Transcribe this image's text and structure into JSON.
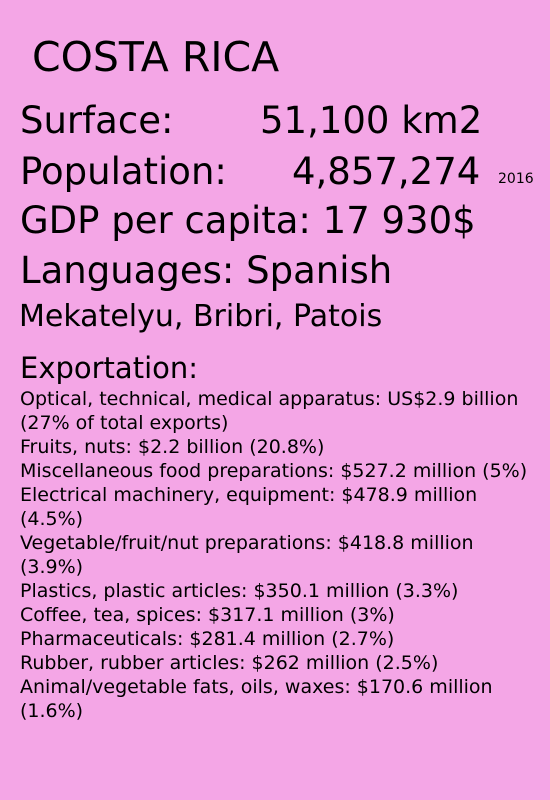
{
  "country": "COSTA RICA",
  "surface": {
    "label": "Surface:",
    "value": "51,100 km2"
  },
  "population": {
    "label": "Population:",
    "value": "4,857,274",
    "year": "2016"
  },
  "gdp": {
    "text": "GDP per capita: 17 930$"
  },
  "languages": {
    "primary": "Languages: Spanish",
    "others": "Mekatelyu, Bribri, Patois"
  },
  "exportation": {
    "heading": "Exportation:",
    "items": [
      "Optical, technical, medical apparatus: US$2.9 billion (27% of total exports)",
      "Fruits, nuts: $2.2 billion (20.8%)",
      "Miscellaneous food preparations: $527.2 million (5%)",
      "Electrical machinery, equipment: $478.9 million (4.5%)",
      "Vegetable/fruit/nut preparations: $418.8 million (3.9%)",
      "Plastics, plastic articles: $350.1 million (3.3%)",
      "Coffee, tea, spices: $317.1 million (3%)",
      "Pharmaceuticals: $281.4 million (2.7%)",
      "Rubber, rubber articles: $262 million (2.5%)",
      "Animal/vegetable fats, oils, waxes: $170.6 million (1.6%)"
    ]
  },
  "colors": {
    "background": "#f4a6e6",
    "text": "#000000"
  }
}
